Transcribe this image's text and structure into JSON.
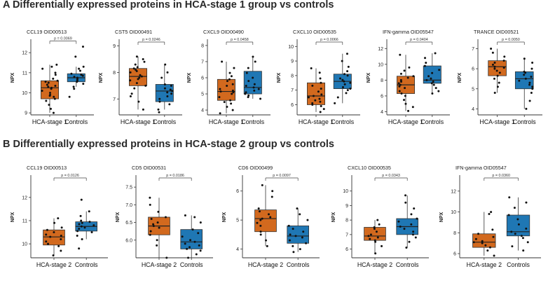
{
  "headings": {
    "a": "A Differentially expressed proteins in HCA-stage 1 group vs controls",
    "b": "B Differentially expressed proteins in HCA-stage 2 group vs controls"
  },
  "colors": {
    "case": "#D2691E",
    "control": "#1F77B4",
    "point": "#111111",
    "axis": "#333333"
  },
  "chart_data": [
    {
      "type": "box",
      "row": "A",
      "title": "CCL19 OID00513",
      "ylabel": "NPX",
      "ylim": [
        8.9,
        12.6
      ],
      "yticks": [
        9,
        10,
        11,
        12
      ],
      "p_label": "p = 0.0069",
      "groups": [
        {
          "name": "HCA-stage 1",
          "q1": 9.7,
          "median": 10.25,
          "q3": 10.6,
          "whisker_low": 9.0,
          "whisker_high": 11.4,
          "points": [
            9.0,
            9.2,
            9.4,
            9.6,
            9.7,
            9.8,
            9.85,
            9.9,
            10.0,
            10.1,
            10.2,
            10.25,
            10.3,
            10.35,
            10.4,
            10.5,
            10.55,
            10.6,
            10.7,
            10.9,
            11.0,
            11.2,
            11.3,
            11.4
          ]
        },
        {
          "name": "Controls",
          "q1": 10.55,
          "median": 10.75,
          "q3": 10.95,
          "whisker_low": 10.3,
          "whisker_high": 11.3,
          "points": [
            9.8,
            10.2,
            10.3,
            10.45,
            10.55,
            10.6,
            10.65,
            10.7,
            10.75,
            10.8,
            10.85,
            10.9,
            10.95,
            11.1,
            11.2,
            11.3,
            11.8,
            12.3
          ]
        }
      ]
    },
    {
      "type": "box",
      "row": "A",
      "title": "CST5 OID00491",
      "ylabel": "NPX",
      "ylim": [
        6.4,
        9.2
      ],
      "yticks": [
        7,
        8,
        9
      ],
      "p_label": "p = 0.0246",
      "groups": [
        {
          "name": "HCA-stage 1",
          "q1": 7.5,
          "median": 7.85,
          "q3": 8.15,
          "whisker_low": 6.6,
          "whisker_high": 8.6,
          "points": [
            6.6,
            6.9,
            7.1,
            7.2,
            7.4,
            7.5,
            7.6,
            7.7,
            7.75,
            7.8,
            7.85,
            7.9,
            8.0,
            8.05,
            8.1,
            8.15,
            8.2,
            8.3,
            8.4,
            8.5,
            8.6
          ]
        },
        {
          "name": "Controls",
          "q1": 6.9,
          "median": 7.3,
          "q3": 7.55,
          "whisker_low": 6.6,
          "whisker_high": 8.3,
          "points": [
            6.5,
            6.6,
            6.8,
            6.9,
            7.0,
            7.1,
            7.2,
            7.25,
            7.3,
            7.35,
            7.4,
            7.5,
            7.55,
            7.8,
            8.0,
            8.3
          ]
        }
      ]
    },
    {
      "type": "box",
      "row": "A",
      "title": "CXCL9 OID00490",
      "ylabel": "NPX",
      "ylim": [
        3.7,
        8.3
      ],
      "yticks": [
        4,
        5,
        6,
        7,
        8
      ],
      "p_label": "p = 0.0458",
      "groups": [
        {
          "name": "HCA-stage 1",
          "q1": 4.6,
          "median": 5.15,
          "q3": 5.9,
          "whisker_low": 3.8,
          "whisker_high": 7.0,
          "points": [
            3.8,
            4.0,
            4.2,
            4.4,
            4.5,
            4.6,
            4.8,
            5.0,
            5.1,
            5.15,
            5.2,
            5.3,
            5.5,
            5.6,
            5.8,
            5.9,
            6.1,
            6.3,
            6.6,
            7.0
          ]
        },
        {
          "name": "Controls",
          "q1": 5.0,
          "median": 5.4,
          "q3": 6.4,
          "whisker_low": 4.7,
          "whisker_high": 7.3,
          "points": [
            4.7,
            4.8,
            4.9,
            5.0,
            5.1,
            5.2,
            5.3,
            5.4,
            5.5,
            5.6,
            5.8,
            6.0,
            6.3,
            6.6,
            7.0,
            7.3
          ]
        }
      ]
    },
    {
      "type": "box",
      "row": "A",
      "title": "CXCL10 OID00535",
      "ylabel": "NPX",
      "ylim": [
        5.3,
        10.4
      ],
      "yticks": [
        6,
        7,
        8,
        9,
        10
      ],
      "p_label": "p = 0.0066",
      "groups": [
        {
          "name": "HCA-stage 1",
          "q1": 6.0,
          "median": 6.6,
          "q3": 7.5,
          "whisker_low": 5.5,
          "whisker_high": 8.5,
          "points": [
            5.5,
            5.7,
            5.9,
            6.0,
            6.1,
            6.2,
            6.3,
            6.4,
            6.5,
            6.6,
            6.7,
            6.9,
            7.1,
            7.3,
            7.5,
            7.8,
            8.2,
            8.5
          ]
        },
        {
          "name": "Controls",
          "q1": 7.1,
          "median": 7.6,
          "q3": 8.1,
          "whisker_low": 6.1,
          "whisker_high": 9.5,
          "points": [
            6.1,
            6.5,
            6.8,
            7.0,
            7.1,
            7.2,
            7.4,
            7.5,
            7.6,
            7.7,
            7.8,
            8.0,
            8.1,
            8.3,
            8.6,
            9.0,
            9.5
          ]
        }
      ]
    },
    {
      "type": "box",
      "row": "A",
      "title": "IFN-gamma OID05547",
      "ylabel": "NPX",
      "ylim": [
        3.6,
        13.0
      ],
      "yticks": [
        4,
        6,
        8,
        10,
        12
      ],
      "p_label": "p = 0.0404",
      "groups": [
        {
          "name": "HCA-stage 1",
          "q1": 6.3,
          "median": 7.4,
          "q3": 8.5,
          "whisker_low": 4.1,
          "whisker_high": 11.2,
          "points": [
            4.1,
            4.6,
            5.0,
            5.5,
            6.0,
            6.3,
            6.6,
            7.0,
            7.2,
            7.4,
            7.6,
            7.8,
            8.0,
            8.3,
            8.5,
            8.8,
            9.2,
            9.6,
            11.2
          ]
        },
        {
          "name": "Controls",
          "q1": 7.6,
          "median": 8.0,
          "q3": 9.8,
          "whisker_low": 6.3,
          "whisker_high": 11.4,
          "points": [
            6.3,
            6.6,
            7.0,
            7.4,
            7.6,
            7.8,
            8.0,
            8.2,
            8.5,
            8.9,
            9.3,
            9.8,
            10.2,
            10.8,
            11.4
          ]
        }
      ]
    },
    {
      "type": "box",
      "row": "A",
      "title": "TRANCE OID00521",
      "ylabel": "NPX",
      "ylim": [
        3.7,
        7.4
      ],
      "yticks": [
        4,
        5,
        6,
        7
      ],
      "p_label": "p = 0.0050",
      "groups": [
        {
          "name": "HCA-stage 1",
          "q1": 5.65,
          "median": 6.1,
          "q3": 6.4,
          "whisker_low": 4.8,
          "whisker_high": 7.0,
          "points": [
            4.8,
            5.1,
            5.3,
            5.5,
            5.65,
            5.8,
            5.9,
            6.0,
            6.05,
            6.1,
            6.2,
            6.3,
            6.4,
            6.6,
            6.8,
            7.0
          ]
        },
        {
          "name": "Controls",
          "q1": 5.0,
          "median": 5.5,
          "q3": 5.85,
          "whisker_low": 4.0,
          "whisker_high": 6.5,
          "points": [
            4.0,
            4.4,
            4.8,
            5.0,
            5.1,
            5.2,
            5.3,
            5.4,
            5.5,
            5.6,
            5.7,
            5.8,
            5.85,
            6.0,
            6.3,
            6.5
          ]
        }
      ]
    },
    {
      "type": "box",
      "row": "B",
      "title": "CCL19 OID00513",
      "ylabel": "NPX",
      "ylim": [
        9.4,
        12.9
      ],
      "yticks": [
        10,
        11,
        12
      ],
      "p_label": "p = 0.0126",
      "groups": [
        {
          "name": "HCA-stage 2",
          "q1": 9.95,
          "median": 10.3,
          "q3": 10.6,
          "whisker_low": 9.5,
          "whisker_high": 11.1,
          "points": [
            9.5,
            9.7,
            9.9,
            10.0,
            10.1,
            10.2,
            10.3,
            10.35,
            10.4,
            10.5,
            10.6,
            10.7,
            10.9,
            11.1
          ]
        },
        {
          "name": "Controls",
          "q1": 10.55,
          "median": 10.75,
          "q3": 10.95,
          "whisker_low": 10.2,
          "whisker_high": 11.4,
          "points": [
            9.8,
            10.2,
            10.35,
            10.5,
            10.55,
            10.65,
            10.7,
            10.75,
            10.8,
            10.85,
            10.9,
            10.95,
            11.0,
            11.2,
            11.4,
            11.9
          ]
        }
      ]
    },
    {
      "type": "box",
      "row": "B",
      "title": "CD5 OID00531",
      "ylabel": "NPX",
      "ylim": [
        5.5,
        7.8
      ],
      "yticks": [
        6.0,
        6.5,
        7.0,
        7.5
      ],
      "p_label": "p = 0.0186",
      "groups": [
        {
          "name": "HCA-stage 2",
          "q1": 6.15,
          "median": 6.4,
          "q3": 6.65,
          "whisker_low": 5.5,
          "whisker_high": 7.2,
          "points": [
            5.5,
            5.85,
            6.0,
            6.15,
            6.25,
            6.35,
            6.4,
            6.45,
            6.5,
            6.6,
            6.65,
            6.8,
            7.0,
            7.2
          ]
        },
        {
          "name": "Controls",
          "q1": 5.75,
          "median": 5.95,
          "q3": 6.3,
          "whisker_low": 5.5,
          "whisker_high": 6.7,
          "points": [
            5.5,
            5.6,
            5.7,
            5.75,
            5.8,
            5.85,
            5.9,
            5.95,
            6.0,
            6.1,
            6.2,
            6.3,
            6.5,
            6.65,
            6.7
          ]
        }
      ]
    },
    {
      "type": "box",
      "row": "B",
      "title": "CD6 OID00499",
      "ylabel": "NPX",
      "ylim": [
        3.7,
        6.5
      ],
      "yticks": [
        4,
        5,
        6
      ],
      "p_label": "p = 0.0097",
      "groups": [
        {
          "name": "HCA-stage 2",
          "q1": 4.6,
          "median": 5.05,
          "q3": 5.35,
          "whisker_low": 4.1,
          "whisker_high": 6.2,
          "points": [
            4.1,
            4.3,
            4.5,
            4.6,
            4.8,
            4.9,
            5.0,
            5.05,
            5.1,
            5.2,
            5.3,
            5.4,
            5.8,
            6.0,
            6.2
          ]
        },
        {
          "name": "Controls",
          "q1": 4.2,
          "median": 4.45,
          "q3": 4.8,
          "whisker_low": 3.9,
          "whisker_high": 5.4,
          "points": [
            3.9,
            4.0,
            4.1,
            4.2,
            4.3,
            4.4,
            4.45,
            4.5,
            4.6,
            4.7,
            4.8,
            5.0,
            5.2,
            5.4
          ]
        }
      ]
    },
    {
      "type": "box",
      "row": "B",
      "title": "CXCL10 OID00535",
      "ylabel": "NPX",
      "ylim": [
        5.4,
        11.0
      ],
      "yticks": [
        6,
        7,
        8,
        9,
        10
      ],
      "p_label": "p = 0.0343",
      "groups": [
        {
          "name": "HCA-stage 2",
          "q1": 6.6,
          "median": 6.9,
          "q3": 7.5,
          "whisker_low": 5.7,
          "whisker_high": 8.0,
          "points": [
            5.7,
            6.2,
            6.5,
            6.6,
            6.7,
            6.8,
            6.9,
            7.0,
            7.2,
            7.4,
            7.5,
            7.7,
            8.0
          ]
        },
        {
          "name": "Controls",
          "q1": 7.0,
          "median": 7.55,
          "q3": 8.1,
          "whisker_low": 6.1,
          "whisker_high": 9.7,
          "points": [
            6.1,
            6.5,
            6.8,
            7.0,
            7.2,
            7.4,
            7.55,
            7.7,
            7.9,
            8.1,
            8.4,
            8.8,
            9.2,
            9.7
          ]
        }
      ]
    },
    {
      "type": "box",
      "row": "B",
      "title": "IFN-gamma OID05547",
      "ylabel": "NPX",
      "ylim": [
        5.6,
        13.4
      ],
      "yticks": [
        6,
        8,
        10,
        12
      ],
      "p_label": "p = 0.0360",
      "groups": [
        {
          "name": "HCA-stage 2",
          "q1": 6.6,
          "median": 7.1,
          "q3": 7.9,
          "whisker_low": 5.8,
          "whisker_high": 10.0,
          "points": [
            5.8,
            6.3,
            6.6,
            6.8,
            7.0,
            7.1,
            7.2,
            7.4,
            7.6,
            7.9,
            8.3,
            9.8,
            10.0
          ]
        },
        {
          "name": "Controls",
          "q1": 7.7,
          "median": 8.1,
          "q3": 9.7,
          "whisker_low": 6.3,
          "whisker_high": 11.4,
          "points": [
            6.3,
            6.7,
            7.1,
            7.5,
            7.7,
            7.9,
            8.1,
            8.4,
            8.8,
            9.3,
            9.7,
            10.4,
            10.9,
            11.4
          ]
        }
      ]
    }
  ]
}
